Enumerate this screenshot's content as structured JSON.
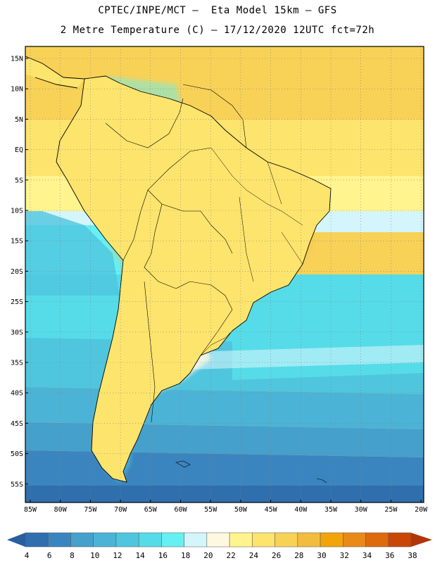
{
  "header": {
    "line1": "CPTEC/INPE/MCT –  Eta Model 15km – GFS",
    "line2": "2 Metre Temperature (C) – 17/12/2020 12UTC fct=72h"
  },
  "map": {
    "lat_labels": [
      "15N",
      "10N",
      "5N",
      "EQ",
      "5S",
      "10S",
      "15S",
      "20S",
      "25S",
      "30S",
      "35S",
      "40S",
      "45S",
      "50S",
      "55S"
    ],
    "lon_labels": [
      "85W",
      "80W",
      "75W",
      "70W",
      "65W",
      "60W",
      "55W",
      "50W",
      "45W",
      "40W",
      "35W",
      "30W",
      "25W",
      "20W"
    ],
    "lon_range": [
      -85,
      -20
    ],
    "lat_range": [
      -58,
      16
    ]
  },
  "colorbar": {
    "labels": [
      "4",
      "6",
      "8",
      "10",
      "12",
      "14",
      "16",
      "18",
      "20",
      "22",
      "24",
      "26",
      "28",
      "30",
      "32",
      "34",
      "36",
      "38"
    ],
    "colors": [
      "#2f6fae",
      "#3a85bf",
      "#45a0cc",
      "#4bb4d6",
      "#4fc6de",
      "#55dce8",
      "#66f0f3",
      "#d4f5fb",
      "#fff8e0",
      "#fff48e",
      "#fde46c",
      "#f8d157",
      "#f2bd3c",
      "#f1a50b",
      "#e98a18",
      "#df6a0c",
      "#c94608"
    ],
    "under_color": "#2a5f9e",
    "over_color": "#b0360a"
  }
}
